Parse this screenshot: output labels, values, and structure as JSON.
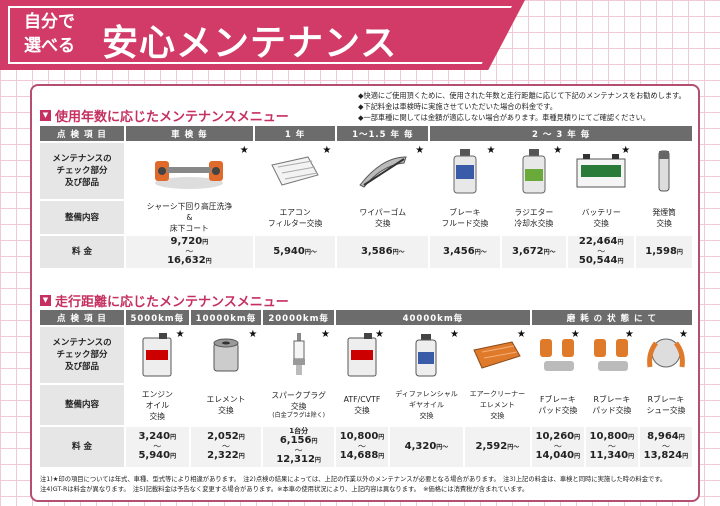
{
  "banner": {
    "small_line1": "自分で",
    "small_line2": "選べる",
    "title": "安心メンテナンス"
  },
  "notes_top": [
    "快適にご使用頂くために、使用された年数と走行距離に応じて下記のメンテナンスをお勧めします。",
    "下記料金は車検時に実施させていただいた場合の料金です。",
    "一部車種に関しては金額が適応しない場合があります。車種見積りにてご確認ください。"
  ],
  "section1": {
    "title": "使用年数に応じたメンテナンスメニュー",
    "header_label": "点 検 項 目",
    "groups": [
      "車 検 毎",
      "1 年",
      "1〜1.5 年 毎",
      "2 〜 3 年 毎"
    ],
    "row_labels": {
      "check": "メンテナンスの\nチェック部分\n及び部品",
      "work": "整備内容",
      "price": "料 金"
    },
    "items": [
      {
        "name": "シャーシ下回り高圧洗浄\n&\n床下コート",
        "price_from": "9,720",
        "price_to": "16,632",
        "icon": "chassis-icon"
      },
      {
        "name": "エアコン\nフィルター交換",
        "price": "5,940",
        "icon": "aircon-filter-icon"
      },
      {
        "name": "ワイパーゴム\n交換",
        "price": "3,586",
        "icon": "wiper-icon"
      },
      {
        "name": "ブレーキ\nフルード交換",
        "price": "3,456",
        "icon": "brake-fluid-icon"
      },
      {
        "name": "ラジエター\n冷却水交換",
        "price": "3,672",
        "icon": "coolant-icon"
      },
      {
        "name": "バッテリー\n交換",
        "price_from": "22,464",
        "price_to": "50,544",
        "icon": "battery-icon"
      },
      {
        "name": "発煙筒\n交換",
        "price": "1,598",
        "icon": "flare-icon"
      }
    ]
  },
  "section2": {
    "title": "走行距離に応じたメンテナンスメニュー",
    "header_label": "点 検 項 目",
    "groups": [
      "5000km毎",
      "10000km毎",
      "20000km毎",
      "40000km毎",
      "磨 耗 の 状 態 に て"
    ],
    "row_labels": {
      "check": "メンテナンスの\nチェック部分\n及び部品",
      "work": "整備内容",
      "price": "料 金"
    },
    "items": [
      {
        "name": "エンジン\nオイル\n交換",
        "price_from": "3,240",
        "price_to": "5,940",
        "icon": "engine-oil-icon"
      },
      {
        "name": "エレメント\n交換",
        "price_from": "2,052",
        "price_to": "2,322",
        "icon": "oil-element-icon"
      },
      {
        "name": "スパークプラグ\n交換",
        "sub": "(白金プラグは除く)",
        "price_pre": "1台分",
        "price_from": "6,156",
        "price_to": "12,312",
        "icon": "spark-plug-icon"
      },
      {
        "name": "ATF/CVTF\n交換",
        "price_from": "10,800",
        "price_to": "14,688",
        "icon": "atf-icon"
      },
      {
        "name": "ディファレンシャル\nギヤオイル\n交換",
        "price": "4,320",
        "icon": "diff-oil-icon"
      },
      {
        "name": "エアークリーナー\nエレメント\n交換",
        "price": "2,592",
        "icon": "air-cleaner-icon"
      },
      {
        "name": "Fブレーキ\nパッド交換",
        "price_from": "10,260",
        "price_to": "14,040",
        "icon": "front-brake-pad-icon"
      },
      {
        "name": "Rブレーキ\nパッド交換",
        "price_from": "10,800",
        "price_to": "11,340",
        "icon": "rear-brake-pad-icon"
      },
      {
        "name": "Rブレーキ\nシュー交換",
        "price_from": "8,964",
        "price_to": "13,824",
        "icon": "brake-shoe-icon"
      }
    ]
  },
  "unit": "円",
  "tilde": "〜",
  "footnotes": [
    "注1)★印の項目については年式、車種、型式等により相違があります。　注2)点検の結果によっては、上記の作業以外のメンテナンスが必要となる場合があります。　注3)上記の料金は、車検と同時に実施した時の料金です。",
    "注4)GT-Rは料金が異なります。　注5)記載料金は予告なく変更する場合があります。※本車の使用状況により、上記内容は異なります。　※価格には消費税が含まれています。"
  ],
  "colors": {
    "accent": "#d23a67",
    "header_gray": "#6c6c6c",
    "label_gray": "#e6e6e6"
  }
}
